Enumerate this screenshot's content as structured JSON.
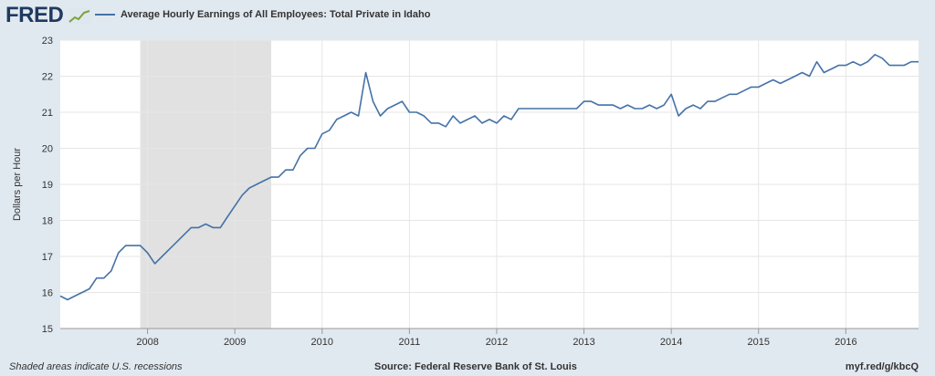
{
  "header": {
    "logo_text": "FRED",
    "legend_label": "Average Hourly Earnings of All Employees: Total Private in Idaho",
    "series_color": "#4572a7"
  },
  "footer": {
    "note": "Shaded areas indicate U.S. recessions",
    "source": "Source: Federal Reserve Bank of St. Louis",
    "link": "myf.red/g/kbcQ"
  },
  "chart_data": {
    "type": "line",
    "title": "",
    "xlabel": "",
    "ylabel": "Dollars per Hour",
    "ylim": [
      15,
      23
    ],
    "xlim": [
      "2007-01",
      "2016-11"
    ],
    "y_ticks": [
      "15",
      "16",
      "17",
      "18",
      "19",
      "20",
      "21",
      "22",
      "23"
    ],
    "x_ticks": [
      "2008",
      "2009",
      "2010",
      "2011",
      "2012",
      "2013",
      "2014",
      "2015",
      "2016"
    ],
    "grid": true,
    "recession": {
      "start": "2007-12",
      "end": "2009-06",
      "color": "#e1e1e1"
    },
    "series": [
      {
        "name": "Average Hourly Earnings of All Employees: Total Private in Idaho",
        "color": "#4572a7",
        "x": [
          "2007-01",
          "2007-02",
          "2007-03",
          "2007-04",
          "2007-05",
          "2007-06",
          "2007-07",
          "2007-08",
          "2007-09",
          "2007-10",
          "2007-11",
          "2007-12",
          "2008-01",
          "2008-02",
          "2008-03",
          "2008-04",
          "2008-05",
          "2008-06",
          "2008-07",
          "2008-08",
          "2008-09",
          "2008-10",
          "2008-11",
          "2008-12",
          "2009-01",
          "2009-02",
          "2009-03",
          "2009-04",
          "2009-05",
          "2009-06",
          "2009-07",
          "2009-08",
          "2009-09",
          "2009-10",
          "2009-11",
          "2009-12",
          "2010-01",
          "2010-02",
          "2010-03",
          "2010-04",
          "2010-05",
          "2010-06",
          "2010-07",
          "2010-08",
          "2010-09",
          "2010-10",
          "2010-11",
          "2010-12",
          "2011-01",
          "2011-02",
          "2011-03",
          "2011-04",
          "2011-05",
          "2011-06",
          "2011-07",
          "2011-08",
          "2011-09",
          "2011-10",
          "2011-11",
          "2011-12",
          "2012-01",
          "2012-02",
          "2012-03",
          "2012-04",
          "2012-05",
          "2012-06",
          "2012-07",
          "2012-08",
          "2012-09",
          "2012-10",
          "2012-11",
          "2012-12",
          "2013-01",
          "2013-02",
          "2013-03",
          "2013-04",
          "2013-05",
          "2013-06",
          "2013-07",
          "2013-08",
          "2013-09",
          "2013-10",
          "2013-11",
          "2013-12",
          "2014-01",
          "2014-02",
          "2014-03",
          "2014-04",
          "2014-05",
          "2014-06",
          "2014-07",
          "2014-08",
          "2014-09",
          "2014-10",
          "2014-11",
          "2014-12",
          "2015-01",
          "2015-02",
          "2015-03",
          "2015-04",
          "2015-05",
          "2015-06",
          "2015-07",
          "2015-08",
          "2015-09",
          "2015-10",
          "2015-11",
          "2015-12",
          "2016-01",
          "2016-02",
          "2016-03",
          "2016-04",
          "2016-05",
          "2016-06",
          "2016-07",
          "2016-08",
          "2016-09",
          "2016-10",
          "2016-11"
        ],
        "values": [
          15.9,
          15.8,
          15.9,
          16.0,
          16.1,
          16.4,
          16.4,
          16.6,
          17.1,
          17.3,
          17.3,
          17.3,
          17.1,
          16.8,
          17.0,
          17.2,
          17.4,
          17.6,
          17.8,
          17.8,
          17.9,
          17.8,
          17.8,
          18.1,
          18.4,
          18.7,
          18.9,
          19.0,
          19.1,
          19.2,
          19.2,
          19.4,
          19.4,
          19.8,
          20.0,
          20.0,
          20.4,
          20.5,
          20.8,
          20.9,
          21.0,
          20.9,
          22.1,
          21.3,
          20.9,
          21.1,
          21.2,
          21.3,
          21.0,
          21.0,
          20.9,
          20.7,
          20.7,
          20.6,
          20.9,
          20.7,
          20.8,
          20.9,
          20.7,
          20.8,
          20.7,
          20.9,
          20.8,
          21.1,
          21.1,
          21.1,
          21.1,
          21.1,
          21.1,
          21.1,
          21.1,
          21.1,
          21.3,
          21.3,
          21.2,
          21.2,
          21.2,
          21.1,
          21.2,
          21.1,
          21.1,
          21.2,
          21.1,
          21.2,
          21.5,
          20.9,
          21.1,
          21.2,
          21.1,
          21.3,
          21.3,
          21.4,
          21.5,
          21.5,
          21.6,
          21.7,
          21.7,
          21.8,
          21.9,
          21.8,
          21.9,
          22.0,
          22.1,
          22.0,
          22.4,
          22.1,
          22.2,
          22.3,
          22.3,
          22.4,
          22.3,
          22.4,
          22.6,
          22.5,
          22.3,
          22.3,
          22.3,
          22.4,
          22.4
        ]
      }
    ]
  }
}
